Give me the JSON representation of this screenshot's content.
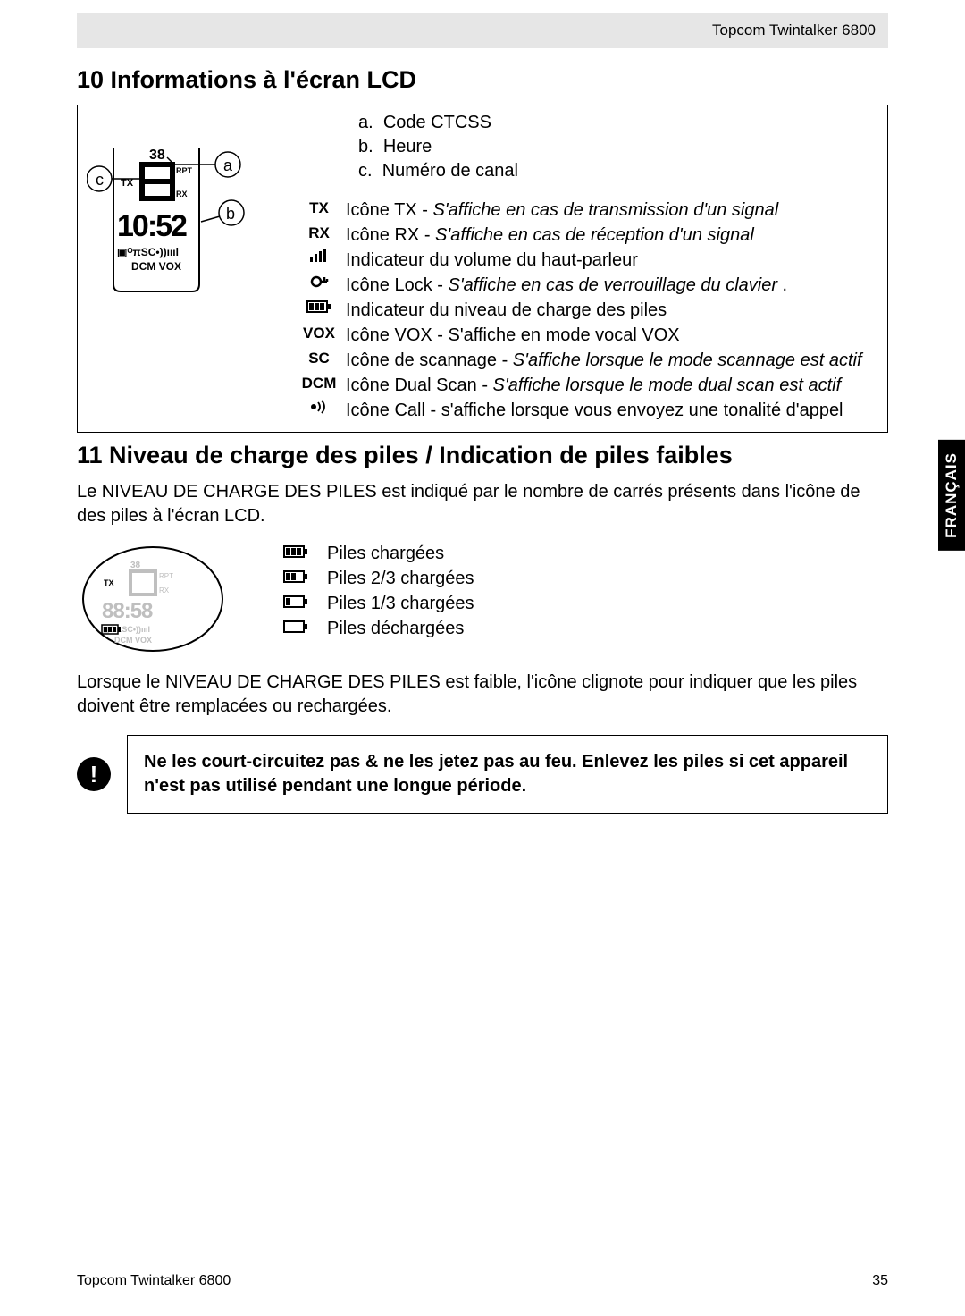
{
  "header": {
    "product": "Topcom Twintalker 6800"
  },
  "side_tab": "FRANÇAIS",
  "section10": {
    "title": "10  Informations à l'écran LCD",
    "abc": [
      {
        "letter": "a.",
        "text": "Code CTCSS"
      },
      {
        "letter": "b.",
        "text": "Heure"
      },
      {
        "letter": "c.",
        "text": "Numéro de canal"
      }
    ],
    "icons": [
      {
        "sym": "TX",
        "type": "text",
        "plain": "Icône TX -  ",
        "italic": "S'affiche en cas de transmission d'un signal"
      },
      {
        "sym": "RX",
        "type": "text",
        "plain": "Icône RX - ",
        "italic": "S'affiche en cas de réception d'un signal"
      },
      {
        "sym": "vol",
        "type": "svg",
        "plain": "Indicateur du volume du haut-parleur",
        "italic": ""
      },
      {
        "sym": "lock",
        "type": "svg",
        "plain": "Icône Lock - ",
        "italic": "S'affiche en cas de verrouillage du clavier ",
        "trail": "."
      },
      {
        "sym": "batt",
        "type": "svg",
        "plain": "Indicateur du niveau de charge des piles",
        "italic": ""
      },
      {
        "sym": "VOX",
        "type": "text",
        "plain": "Icône VOX - S'affiche en mode vocal VOX",
        "italic": ""
      },
      {
        "sym": "SC",
        "type": "text",
        "plain": "Icône de scannage -  ",
        "italic": "S'affiche lorsque le mode scannage est actif"
      },
      {
        "sym": "DCM",
        "type": "text",
        "plain": "Icône Dual Scan - ",
        "italic": "S'affiche lorsque le mode dual scan est actif"
      },
      {
        "sym": "call",
        "type": "svg",
        "plain": "Icône Call - s'affiche lorsque vous envoyez une tonalité d'appel",
        "italic": ""
      }
    ]
  },
  "section11": {
    "title": "11  Niveau de charge des piles / Indication de piles faibles",
    "intro": "Le NIVEAU DE CHARGE DES PILES est indiqué par le nombre de carrés présents dans l'icône de des piles à l'écran LCD.",
    "levels": [
      {
        "bars": 3,
        "text": "Piles chargées"
      },
      {
        "bars": 2,
        "text": "Piles 2/3 chargées"
      },
      {
        "bars": 1,
        "text": "Piles 1/3 chargées"
      },
      {
        "bars": 0,
        "text": "Piles déchargées"
      }
    ],
    "para2": "Lorsque le NIVEAU DE CHARGE DES PILES est faible, l'icône clignote pour indiquer que les piles doivent être remplacées ou rechargées.",
    "warning": "Ne les court-circuitez pas & ne les jetez pas au feu.  Enlevez les piles si cet appareil n'est pas utilisé pendant une longue période."
  },
  "footer": {
    "left": "Topcom Twintalker 6800",
    "page": "35"
  }
}
